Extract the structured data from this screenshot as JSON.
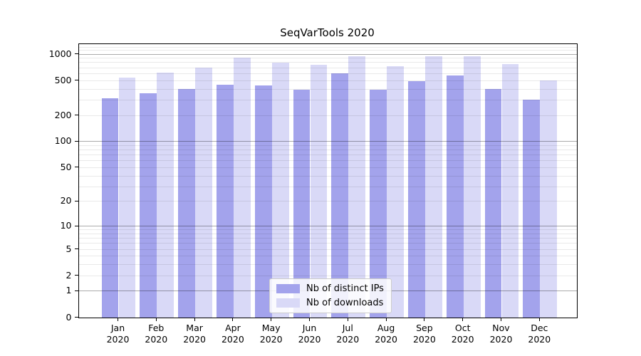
{
  "figure": {
    "title": "SeqVarTools 2020"
  },
  "colors": {
    "background": "#ffffff",
    "bar_ips": "#a3a3ec",
    "bar_downloads": "#d9d9f7",
    "grid_minor": "#e9e9e9",
    "grid_major": "#ababab",
    "axis": "#000000",
    "legend_border": "#cccccc"
  },
  "chart_data": {
    "type": "bar",
    "title": "SeqVarTools 2020",
    "scale": "log1p",
    "categories": [
      "Jan",
      "Feb",
      "Mar",
      "Apr",
      "May",
      "Jun",
      "Jul",
      "Aug",
      "Sep",
      "Oct",
      "Nov",
      "Dec"
    ],
    "category_year": "2020",
    "series": [
      {
        "name": "Nb of distinct IPs",
        "color": "#a3a3ec",
        "values": [
          315,
          355,
          400,
          445,
          440,
          390,
          605,
          390,
          490,
          570,
          400,
          300
        ]
      },
      {
        "name": "Nb of downloads",
        "color": "#d9d9f7",
        "values": [
          540,
          610,
          695,
          905,
          800,
          750,
          950,
          725,
          950,
          950,
          765,
          505
        ]
      }
    ],
    "y_ticks": [
      0,
      1,
      2,
      5,
      10,
      20,
      50,
      100,
      200,
      500,
      1000
    ],
    "minor_gridline_values": [
      2,
      3,
      4,
      5,
      6,
      7,
      8,
      9,
      20,
      30,
      40,
      50,
      60,
      70,
      80,
      90,
      200,
      300,
      400,
      500,
      600,
      700,
      800,
      900,
      1100,
      1200
    ],
    "major_gridline_values": [
      1,
      10,
      100,
      1000
    ],
    "ylim": [
      0,
      1300
    ],
    "xlabel": "",
    "ylabel": "",
    "grid": true,
    "legend_position": "lower center"
  }
}
